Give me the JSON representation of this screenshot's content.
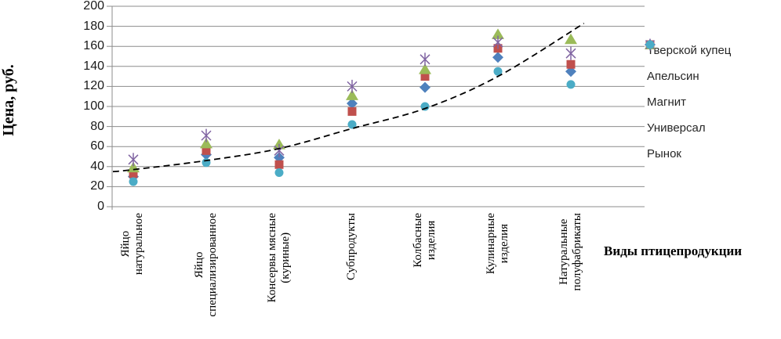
{
  "chart_data": {
    "type": "scatter",
    "title": "",
    "xlabel": "Виды птицепродукции",
    "ylabel": "Цена, руб.",
    "categories": [
      "Яйцо натуральное",
      "Яйцо специализированное",
      "Консервы мясные (куриные)",
      "Субпродукты",
      "Колбасные изделия",
      "Кулинарные изделия",
      "Натуральные полуфабрикаты"
    ],
    "category_lines": [
      [
        "Яйцо",
        "натуральное"
      ],
      [
        "Яйцо",
        "специализированное"
      ],
      [
        "Консервы мясные",
        "(куриные)"
      ],
      [
        "Субпродукты"
      ],
      [
        "Колбасные",
        "изделия"
      ],
      [
        "Кулинарные",
        "изделия"
      ],
      [
        "Натуральные",
        "полуфабрикаты"
      ]
    ],
    "y_axis": {
      "min": 0,
      "max": 200,
      "step": 20
    },
    "ylim": [
      0,
      200
    ],
    "grid": true,
    "legend_position": "right",
    "series": [
      {
        "name": "Тверской купец",
        "marker": "diamond",
        "color": "#4F81BD",
        "values": [
          30,
          52,
          49,
          103,
          119,
          149,
          135
        ]
      },
      {
        "name": "Апельсин",
        "marker": "square",
        "color": "#C0504D",
        "values": [
          33,
          56,
          42,
          95,
          130,
          158,
          142
        ]
      },
      {
        "name": "Магнит",
        "marker": "triangle",
        "color": "#9BBB59",
        "values": [
          39,
          63,
          62,
          111,
          137,
          172,
          167
        ]
      },
      {
        "name": "Универсал",
        "marker": "asterisk",
        "color": "#8064A2",
        "values": [
          47,
          71,
          56,
          120,
          147,
          164,
          153
        ]
      },
      {
        "name": "Рынок",
        "marker": "circle",
        "color": "#4BACC6",
        "values": [
          25,
          44,
          34,
          82,
          100,
          135,
          122
        ]
      }
    ],
    "trend": {
      "style": "dashed",
      "color": "#000000",
      "points": [
        [
          0.72,
          35
        ],
        [
          1,
          37
        ],
        [
          2,
          46
        ],
        [
          3,
          58
        ],
        [
          4,
          78
        ],
        [
          5,
          98
        ],
        [
          6,
          130
        ],
        [
          7.18,
          183
        ]
      ]
    },
    "axis_color": "#8c8c8c"
  }
}
